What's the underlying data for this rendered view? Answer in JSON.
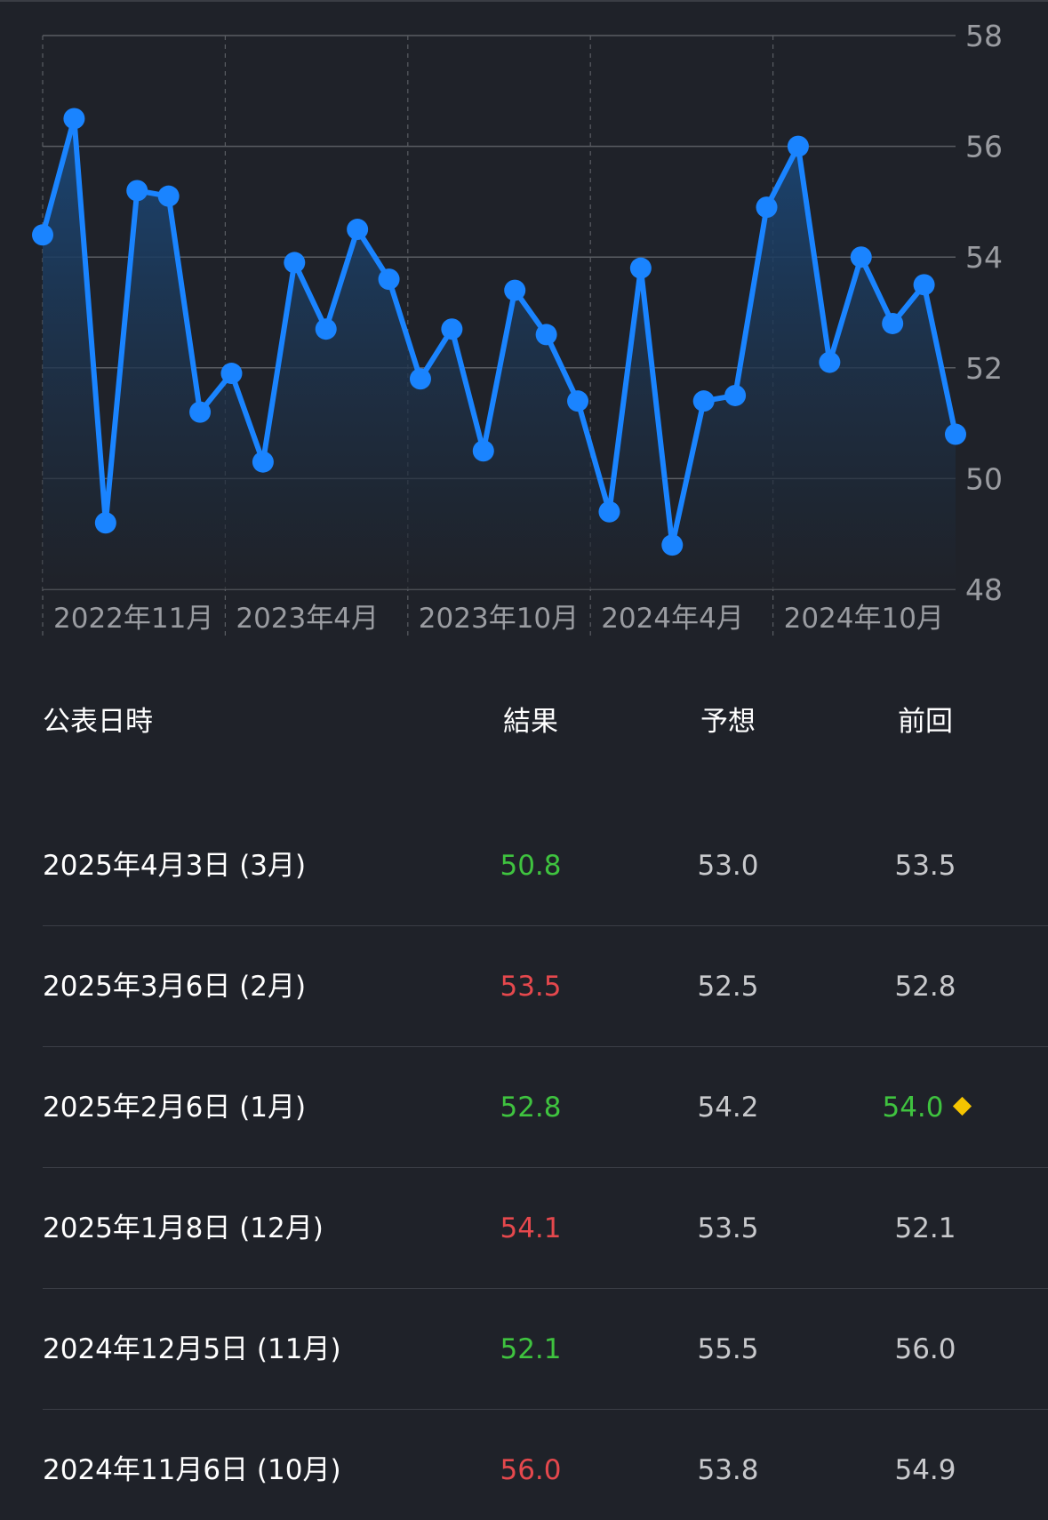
{
  "chart_data": {
    "type": "area",
    "ylim": [
      48,
      58
    ],
    "yticks": [
      "48",
      "50",
      "52",
      "54",
      "56",
      "58"
    ],
    "xticks": [
      "2022年11月",
      "2023年4月",
      "2023年10月",
      "2024年4月",
      "2024年10月"
    ],
    "series": [
      {
        "values": [
          54.4,
          56.5,
          49.2,
          55.2,
          55.1,
          51.2,
          51.9,
          50.3,
          53.9,
          52.7,
          54.5,
          53.6,
          51.8,
          52.7,
          50.5,
          53.4,
          52.6,
          51.4,
          49.4,
          53.8,
          48.8,
          51.4,
          51.5,
          54.9,
          56.0,
          52.1,
          54.0,
          52.8,
          53.5,
          50.8
        ]
      }
    ],
    "colors": {
      "line": "#1a84ff",
      "area_top": "#1a4778",
      "grid": "#5a5d63",
      "axis_text": "#9a9ca1"
    }
  },
  "table": {
    "headers": {
      "date": "公表日時",
      "actual": "結果",
      "forecast": "予想",
      "previous": "前回"
    },
    "rows": [
      {
        "date": "2025年4月3日 (3月)",
        "actual": "50.8",
        "actual_trend": "down",
        "forecast": "53.0",
        "previous": "53.5",
        "previous_trend": "",
        "revised": false
      },
      {
        "date": "2025年3月6日 (2月)",
        "actual": "53.5",
        "actual_trend": "up",
        "forecast": "52.5",
        "previous": "52.8",
        "previous_trend": "",
        "revised": false
      },
      {
        "date": "2025年2月6日 (1月)",
        "actual": "52.8",
        "actual_trend": "down",
        "forecast": "54.2",
        "previous": "54.0",
        "previous_trend": "down",
        "revised": true
      },
      {
        "date": "2025年1月8日 (12月)",
        "actual": "54.1",
        "actual_trend": "up",
        "forecast": "53.5",
        "previous": "52.1",
        "previous_trend": "",
        "revised": false
      },
      {
        "date": "2024年12月5日 (11月)",
        "actual": "52.1",
        "actual_trend": "down",
        "forecast": "55.5",
        "previous": "56.0",
        "previous_trend": "",
        "revised": false
      },
      {
        "date": "2024年11月6日 (10月)",
        "actual": "56.0",
        "actual_trend": "up",
        "forecast": "53.8",
        "previous": "54.9",
        "previous_trend": "",
        "revised": false
      }
    ],
    "colors": {
      "up": "#e5484d",
      "down": "#3fc33f",
      "revised_marker": "#f5c400"
    }
  }
}
